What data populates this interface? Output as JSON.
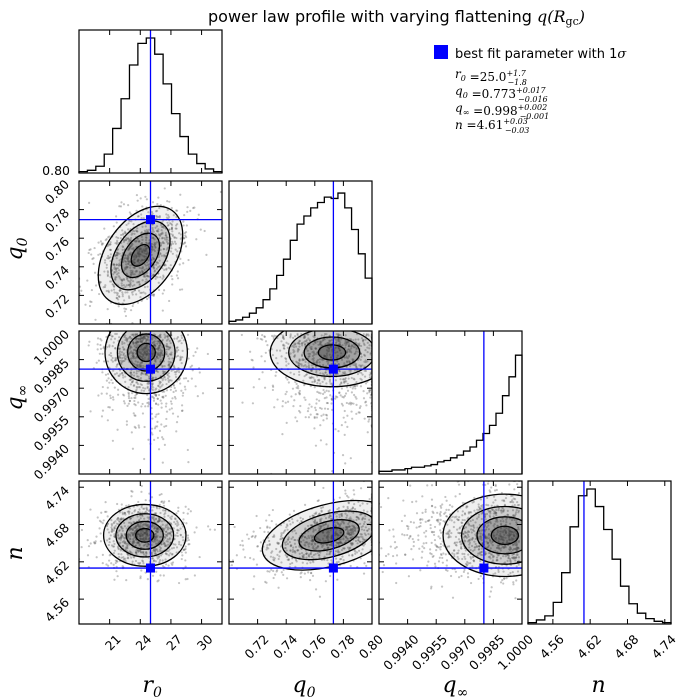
{
  "chart_data": {
    "type": "corner",
    "title_text": "power law profile with varying flattening ",
    "title_math": "q(R",
    "title_math_sub": "gc",
    "title_math_close": ")",
    "parameters": [
      {
        "key": "r0",
        "label": "r",
        "sub": "0",
        "range": [
          18,
          32
        ],
        "ticks": [
          21,
          24,
          27,
          30
        ],
        "tick_labels": [
          "21",
          "24",
          "27",
          "30"
        ],
        "best": 25.0
      },
      {
        "key": "q0",
        "label": "q",
        "sub": "0",
        "range": [
          0.7,
          0.8
        ],
        "ticks": [
          0.72,
          0.74,
          0.76,
          0.78,
          0.8
        ],
        "tick_labels": [
          "0.72",
          "0.74",
          "0.76",
          "0.78",
          "0.80"
        ],
        "best": 0.773
      },
      {
        "key": "qinf",
        "label": "q",
        "sub": "∞",
        "range": [
          0.9925,
          1.0
        ],
        "ticks": [
          0.994,
          0.9955,
          0.997,
          0.9985,
          1.0
        ],
        "tick_labels": [
          "0.9940",
          "0.9955",
          "0.9970",
          "0.9985",
          "1.0000"
        ],
        "best": 0.998
      },
      {
        "key": "n",
        "label": "n",
        "sub": "",
        "range": [
          4.52,
          4.75
        ],
        "ticks": [
          4.56,
          4.62,
          4.68,
          4.74
        ],
        "tick_labels": [
          "4.56",
          "4.62",
          "4.68",
          "4.74"
        ],
        "best": 4.61
      }
    ],
    "histograms": {
      "r0": [
        0.01,
        0.02,
        0.05,
        0.14,
        0.33,
        0.55,
        0.8,
        0.96,
        1.0,
        0.88,
        0.66,
        0.44,
        0.27,
        0.14,
        0.07,
        0.03,
        0.01
      ],
      "q0": [
        0.02,
        0.03,
        0.05,
        0.08,
        0.12,
        0.18,
        0.26,
        0.36,
        0.48,
        0.62,
        0.74,
        0.8,
        0.86,
        0.9,
        0.94,
        0.93,
        0.97,
        0.86,
        0.7,
        0.52,
        0.34
      ],
      "qinf": [
        0.02,
        0.02,
        0.03,
        0.03,
        0.04,
        0.05,
        0.05,
        0.06,
        0.07,
        0.09,
        0.1,
        0.12,
        0.14,
        0.17,
        0.2,
        0.25,
        0.3,
        0.36,
        0.45,
        0.58,
        0.72,
        0.88
      ],
      "n": [
        0.01,
        0.03,
        0.06,
        0.16,
        0.38,
        0.72,
        0.95,
        1.0,
        0.87,
        0.7,
        0.48,
        0.28,
        0.15,
        0.08,
        0.04,
        0.02,
        0.01
      ]
    },
    "hist_top_label": "0.80",
    "legend": {
      "entry": "best fit parameter with 1",
      "entry_sigma": "σ",
      "marker_color": "#0000ff"
    },
    "summary": [
      {
        "name": "r",
        "sub": "0",
        "value": "25.0",
        "plus": "+1.7",
        "minus": "−1.8"
      },
      {
        "name": "q",
        "sub": "0",
        "value": "0.773",
        "plus": "+0.017",
        "minus": "−0.016"
      },
      {
        "name": "q",
        "sub": "∞",
        "value": "0.998",
        "plus": "+0.002",
        "minus": "−0.001"
      },
      {
        "name": "n",
        "sub": "",
        "value": "4.61",
        "plus": "+0.03",
        "minus": "−0.03"
      }
    ],
    "colors": {
      "best_fit": "#0000ff",
      "contour": "#000000",
      "points": "#555555",
      "density": "#333333"
    }
  }
}
